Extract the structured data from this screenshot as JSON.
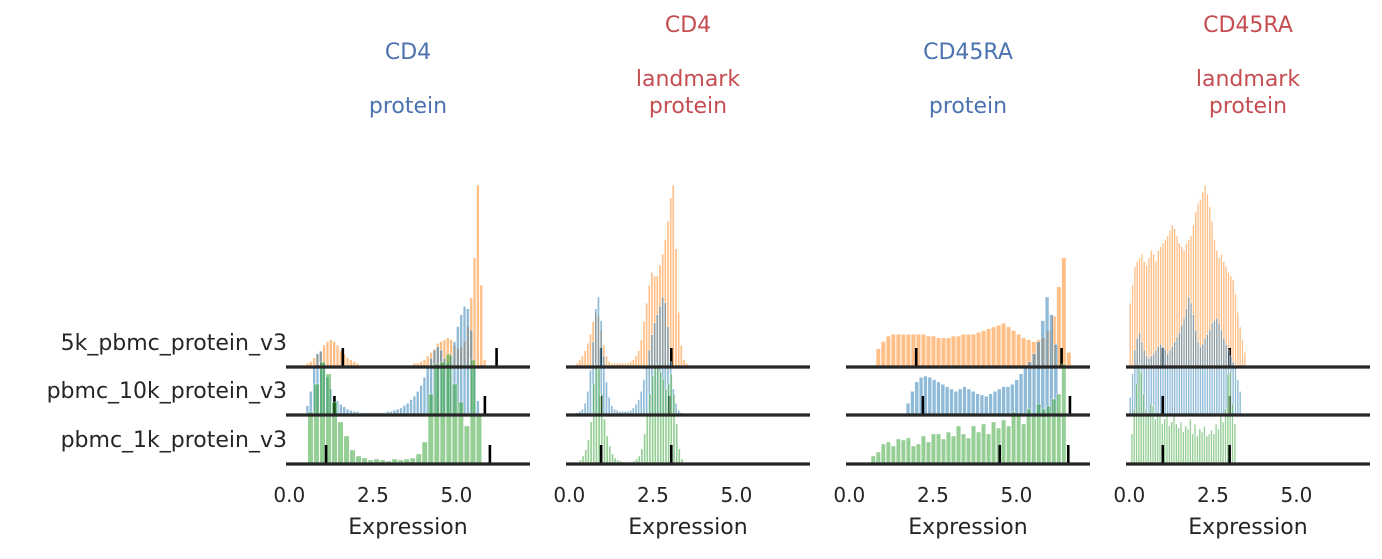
{
  "colors": {
    "protein_title": "#4c72b0",
    "landmark_title": "#c44e52",
    "axis_text": "#262626",
    "baseline": "#262626",
    "marker": "#000000"
  },
  "samples": [
    {
      "name": "5k_pbmc_protein_v3",
      "color": "#ff7f0e"
    },
    {
      "name": "pbmc_10k_protein_v3",
      "color": "#1f77b4"
    },
    {
      "name": "pbmc_1k_protein_v3",
      "color": "#2ca02c"
    }
  ],
  "chart_data": {
    "type": "histogram-ridgeline",
    "xlabel": "Expression",
    "xticks": [
      0.0,
      2.5,
      5.0
    ],
    "xtick_labels": [
      "0.0",
      "2.5",
      "5.0"
    ],
    "xlim": [
      -0.1,
      7.2
    ],
    "panels": [
      {
        "title_lines": [
          "CD4",
          "",
          "protein"
        ],
        "title_color": "#4c72b0",
        "series": [
          {
            "sample": "5k_pbmc_protein_v3",
            "bin_start": 0.5,
            "bin_width": 0.1,
            "heights": [
              2,
              3,
              5,
              7,
              9,
              12,
              14,
              15,
              14,
              12,
              9,
              7,
              5,
              4,
              3,
              2,
              1,
              1,
              1,
              1,
              1,
              1,
              1,
              1,
              1,
              1,
              1,
              1,
              1,
              1,
              1,
              1,
              2,
              2,
              3,
              4,
              6,
              8,
              10,
              13,
              14,
              15,
              16,
              15,
              12,
              10,
              11,
              14,
              22,
              38,
              60,
              100,
              45,
              4
            ],
            "markers": [
              1.6,
              6.2
            ]
          },
          {
            "sample": "pbmc_10k_protein_v3",
            "bin_start": 0.5,
            "bin_width": 0.1,
            "heights": [
              8,
              20,
              42,
              52,
              54,
              44,
              32,
              22,
              16,
              12,
              9,
              7,
              5,
              4,
              3,
              3,
              2,
              2,
              2,
              2,
              2,
              2,
              2,
              2,
              3,
              3,
              4,
              5,
              6,
              8,
              10,
              13,
              16,
              20,
              25,
              32,
              40,
              48,
              55,
              58,
              55,
              48,
              44,
              50,
              62,
              75,
              85,
              92,
              90,
              72,
              40,
              12
            ],
            "markers": [
              1.35,
              5.85
            ]
          },
          {
            "sample": "pbmc_1k_protein_v3",
            "bin_start": 0.55,
            "bin_width": 0.18,
            "heights": [
              52,
              80,
              102,
              90,
              62,
              42,
              28,
              14,
              8,
              6,
              4,
              5,
              4,
              3,
              5,
              4,
              5,
              6,
              10,
              22,
              70,
              100,
              102,
              110,
              80,
              62,
              38,
              104,
              48
            ],
            "markers": [
              1.1,
              6.0
            ]
          }
        ]
      },
      {
        "title_lines": [
          "CD4",
          "",
          "landmark",
          "protein"
        ],
        "title_color": "#c44e52",
        "series": [
          {
            "sample": "5k_pbmc_protein_v3",
            "bin_start": 0.2,
            "bin_width": 0.08,
            "heights": [
              2,
              4,
              6,
              9,
              13,
              18,
              25,
              30,
              28,
              20,
              12,
              6,
              3,
              2,
              2,
              2,
              2,
              2,
              2,
              2,
              3,
              4,
              6,
              9,
              15,
              25,
              35,
              45,
              52,
              50,
              50,
              56,
              62,
              70,
              80,
              93,
              100,
              65,
              30,
              12,
              4,
              2,
              1
            ],
            "markers": [
              0.95,
              3.05
            ]
          },
          {
            "sample": "pbmc_10k_protein_v3",
            "bin_start": 0.2,
            "bin_width": 0.08,
            "heights": [
              2,
              3,
              5,
              10,
              20,
              38,
              62,
              90,
              100,
              80,
              50,
              28,
              15,
              8,
              5,
              4,
              3,
              3,
              3,
              3,
              4,
              6,
              9,
              13,
              20,
              30,
              42,
              55,
              68,
              78,
              85,
              92,
              100,
              95,
              75,
              45,
              22,
              10,
              4,
              2
            ],
            "markers": [
              0.95,
              3.0
            ]
          },
          {
            "sample": "pbmc_1k_protein_v3",
            "bin_start": 0.3,
            "bin_width": 0.08,
            "heights": [
              4,
              8,
              14,
              24,
              42,
              80,
              100,
              95,
              70,
              45,
              28,
              18,
              10,
              6,
              4,
              3,
              2,
              2,
              2,
              2,
              3,
              5,
              8,
              15,
              30,
              50,
              70,
              88,
              98,
              100,
              92,
              85,
              75,
              80,
              90,
              70,
              40,
              15,
              5
            ],
            "markers": [
              0.95,
              3.05
            ]
          }
        ]
      },
      {
        "title_lines": [
          "CD45RA",
          "",
          "protein"
        ],
        "title_color": "#4c72b0",
        "series": [
          {
            "sample": "5k_pbmc_protein_v3",
            "bin_start": 0.8,
            "bin_width": 0.15,
            "heights": [
              10,
              14,
              17,
              18,
              18,
              18,
              18,
              18,
              18,
              18,
              17,
              17,
              16,
              16,
              16,
              17,
              17,
              18,
              18,
              18,
              19,
              20,
              21,
              22,
              23,
              24,
              22,
              20,
              18,
              16,
              15,
              14,
              15,
              16,
              20,
              28,
              44,
              60,
              8
            ],
            "markers": [
              2.0,
              6.35
            ]
          },
          {
            "sample": "pbmc_10k_protein_v3",
            "bin_start": 1.7,
            "bin_width": 0.13,
            "heights": [
              10,
              20,
              28,
              32,
              33,
              32,
              30,
              28,
              26,
              24,
              22,
              20,
              22,
              24,
              22,
              20,
              18,
              17,
              16,
              18,
              20,
              22,
              24,
              24,
              26,
              30,
              35,
              40,
              45,
              52,
              62,
              80,
              100,
              85,
              60
            ],
            "markers": [
              2.2,
              6.6
            ]
          },
          {
            "sample": "pbmc_1k_protein_v3",
            "bin_start": 0.65,
            "bin_width": 0.15,
            "heights": [
              8,
              12,
              20,
              22,
              18,
              25,
              24,
              26,
              18,
              20,
              28,
              22,
              30,
              30,
              25,
              32,
              28,
              38,
              30,
              26,
              38,
              32,
              40,
              30,
              42,
              36,
              44,
              38,
              52,
              48,
              40,
              55,
              48,
              60,
              55,
              58,
              65,
              70,
              100
            ],
            "markers": [
              4.5,
              6.55
            ]
          }
        ]
      },
      {
        "title_lines": [
          "CD45RA",
          "",
          "landmark",
          "protein"
        ],
        "title_color": "#c44e52",
        "series": [
          {
            "sample": "5k_pbmc_protein_v3",
            "bin_start": 0.0,
            "bin_width": 0.07,
            "heights": [
              35,
              45,
              55,
              58,
              60,
              62,
              58,
              56,
              60,
              64,
              62,
              58,
              64,
              66,
              68,
              70,
              72,
              75,
              78,
              76,
              72,
              68,
              66,
              64,
              68,
              70,
              72,
              78,
              85,
              90,
              92,
              96,
              100,
              95,
              88,
              80,
              70,
              64,
              60,
              62,
              58,
              55,
              52,
              50,
              48,
              40,
              30,
              22,
              15,
              8
            ],
            "markers": [
              1.0,
              3.0
            ]
          },
          {
            "sample": "pbmc_10k_protein_v3",
            "bin_start": 0.0,
            "bin_width": 0.07,
            "heights": [
              15,
              35,
              55,
              65,
              70,
              62,
              55,
              50,
              48,
              50,
              52,
              55,
              58,
              60,
              58,
              55,
              52,
              55,
              58,
              62,
              66,
              70,
              76,
              82,
              90,
              100,
              95,
              85,
              72,
              62,
              58,
              60,
              65,
              68,
              72,
              78,
              80,
              82,
              78,
              72,
              65,
              60,
              55,
              50,
              45,
              40,
              30,
              20
            ],
            "markers": [
              1.0,
              3.0
            ]
          },
          {
            "sample": "pbmc_1k_protein_v3",
            "bin_start": 0.05,
            "bin_width": 0.07,
            "heights": [
              30,
              55,
              80,
              100,
              92,
              70,
              55,
              48,
              60,
              58,
              45,
              52,
              48,
              40,
              45,
              50,
              38,
              42,
              48,
              40,
              36,
              42,
              32,
              38,
              35,
              45,
              30,
              40,
              28,
              35,
              32,
              38,
              28,
              30,
              34,
              30,
              40,
              35,
              48,
              42,
              55,
              90,
              92,
              60,
              40
            ],
            "markers": [
              1.0,
              3.0
            ]
          }
        ]
      }
    ]
  }
}
